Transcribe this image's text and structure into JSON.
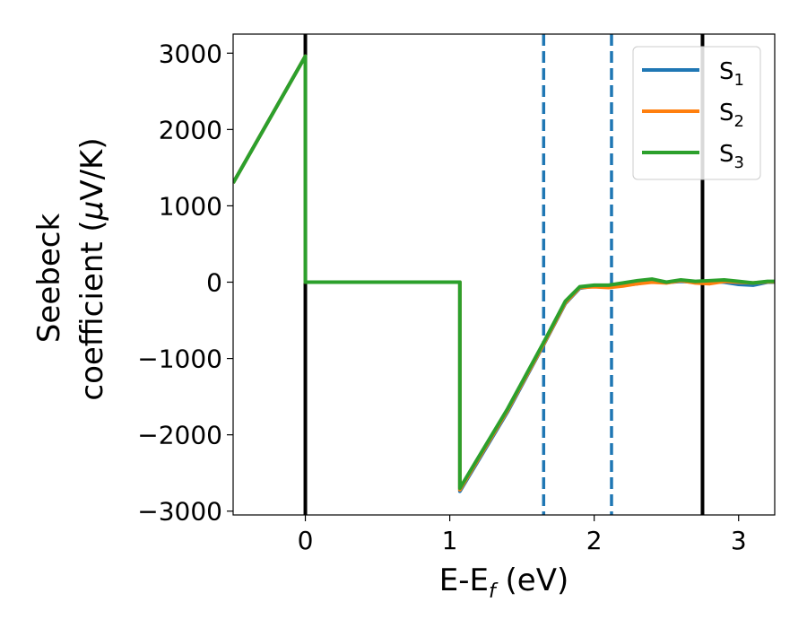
{
  "chart_data": {
    "type": "line",
    "xlabel": "E-E",
    "xlabel_sub": "f",
    "xlabel_unit": " (eV)",
    "ylabel_line1": "Seebeck",
    "ylabel_line2": "coefficient  (",
    "ylabel_mu": "μ",
    "ylabel_unit": "V/K)",
    "xlim": [
      -0.5,
      3.25
    ],
    "ylim": [
      -3050,
      3250
    ],
    "x_ticks": [
      0,
      1,
      2,
      3
    ],
    "x_tick_labels": [
      "0",
      "1",
      "2",
      "3"
    ],
    "y_ticks": [
      -3000,
      -2000,
      -1000,
      0,
      1000,
      2000,
      3000
    ],
    "y_tick_labels": [
      "−3000",
      "−2000",
      "−1000",
      "0",
      "1000",
      "2000",
      "3000"
    ],
    "grid": false,
    "legend_position": "top-right",
    "vertical_lines": [
      {
        "x": 0,
        "style": "solid",
        "color": "#000000"
      },
      {
        "x": 2.75,
        "style": "solid",
        "color": "#000000"
      },
      {
        "x": 1.65,
        "style": "dashed",
        "color": "#1f77b4"
      },
      {
        "x": 2.12,
        "style": "dashed",
        "color": "#1f77b4"
      }
    ],
    "series": [
      {
        "name": "S",
        "sub": "1",
        "color": "#1f77b4",
        "points": [
          [
            -0.5,
            1300
          ],
          [
            0,
            2960
          ],
          [
            0,
            0
          ],
          [
            1.07,
            0
          ],
          [
            1.07,
            -2740
          ],
          [
            1.4,
            -1700
          ],
          [
            1.65,
            -820
          ],
          [
            1.8,
            -280
          ],
          [
            1.9,
            -80
          ],
          [
            2.0,
            -50
          ],
          [
            2.1,
            -55
          ],
          [
            2.2,
            -40
          ],
          [
            2.3,
            -20
          ],
          [
            2.4,
            10
          ],
          [
            2.5,
            -5
          ],
          [
            2.6,
            10
          ],
          [
            2.7,
            0
          ],
          [
            2.8,
            10
          ],
          [
            2.9,
            0
          ],
          [
            3.0,
            -30
          ],
          [
            3.1,
            -40
          ],
          [
            3.2,
            0
          ],
          [
            3.25,
            0
          ]
        ]
      },
      {
        "name": "S",
        "sub": "2",
        "color": "#ff7f0e",
        "points": [
          [
            -0.5,
            1300
          ],
          [
            0,
            2960
          ],
          [
            0,
            0
          ],
          [
            1.07,
            0
          ],
          [
            1.07,
            -2720
          ],
          [
            1.4,
            -1680
          ],
          [
            1.65,
            -810
          ],
          [
            1.8,
            -270
          ],
          [
            1.9,
            -70
          ],
          [
            2.0,
            -60
          ],
          [
            2.1,
            -70
          ],
          [
            2.2,
            -50
          ],
          [
            2.3,
            -20
          ],
          [
            2.4,
            0
          ],
          [
            2.5,
            -10
          ],
          [
            2.6,
            20
          ],
          [
            2.7,
            -10
          ],
          [
            2.8,
            -20
          ],
          [
            2.9,
            10
          ],
          [
            3.0,
            0
          ],
          [
            3.1,
            -10
          ],
          [
            3.2,
            5
          ],
          [
            3.25,
            5
          ]
        ]
      },
      {
        "name": "S",
        "sub": "3",
        "color": "#2ca02c",
        "points": [
          [
            -0.5,
            1300
          ],
          [
            0,
            2960
          ],
          [
            0,
            0
          ],
          [
            1.07,
            0
          ],
          [
            1.07,
            -2700
          ],
          [
            1.4,
            -1660
          ],
          [
            1.65,
            -790
          ],
          [
            1.8,
            -250
          ],
          [
            1.9,
            -60
          ],
          [
            2.0,
            -40
          ],
          [
            2.1,
            -40
          ],
          [
            2.2,
            -10
          ],
          [
            2.3,
            20
          ],
          [
            2.4,
            40
          ],
          [
            2.5,
            0
          ],
          [
            2.6,
            30
          ],
          [
            2.7,
            10
          ],
          [
            2.8,
            20
          ],
          [
            2.9,
            30
          ],
          [
            3.0,
            10
          ],
          [
            3.1,
            -10
          ],
          [
            3.2,
            10
          ],
          [
            3.25,
            10
          ]
        ]
      }
    ]
  }
}
